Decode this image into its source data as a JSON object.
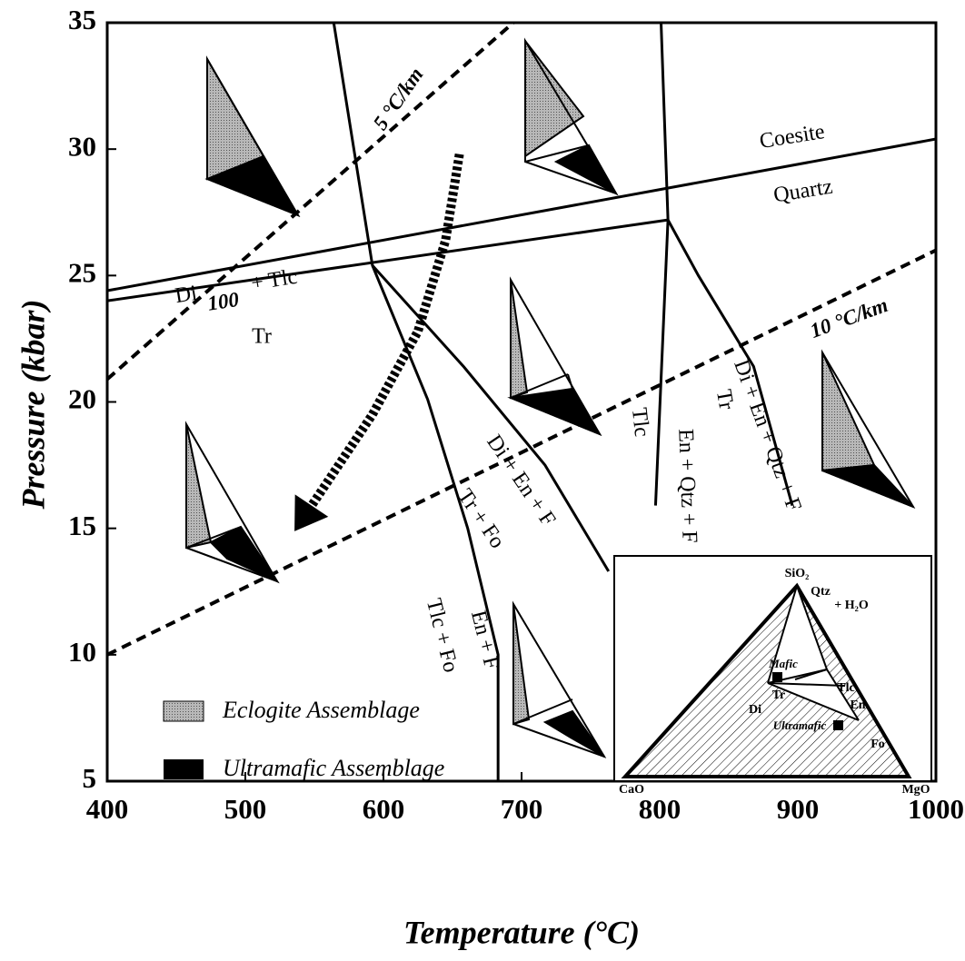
{
  "chart_data": {
    "type": "line",
    "x_label": "Temperature (°C)",
    "y_label": "Pressure (kbar)",
    "xlim": [
      400,
      1000
    ],
    "ylim": [
      5,
      35
    ],
    "xticks": [
      400,
      500,
      600,
      700,
      800,
      900,
      1000
    ],
    "yticks": [
      5,
      10,
      15,
      20,
      25,
      30,
      35
    ],
    "series": [
      {
        "style": "solid",
        "color": "#000000",
        "x": [
          400,
          1000
        ],
        "values": [
          24.4,
          30.4
        ]
      },
      {
        "style": "solid",
        "color": "#000000",
        "x": [
          400,
          806
        ],
        "values": [
          24.0,
          27.2
        ]
      },
      {
        "style": "solid",
        "color": "#000000",
        "x": [
          564,
          592,
          632,
          661,
          683,
          683
        ],
        "values": [
          35,
          25.4,
          20.1,
          15,
          10,
          5
        ]
      },
      {
        "style": "solid",
        "color": "#000000",
        "x": [
          592,
          658,
          717,
          763
        ],
        "values": [
          25.4,
          21.4,
          17.5,
          13.3
        ]
      },
      {
        "style": "solid",
        "color": "#000000",
        "x": [
          801,
          806,
          797
        ],
        "values": [
          35,
          27.2,
          15.9
        ]
      },
      {
        "style": "solid",
        "color": "#000000",
        "x": [
          806,
          828,
          868,
          896
        ],
        "values": [
          27.2,
          25.0,
          21.4,
          15.9
        ]
      },
      {
        "style": "dashed",
        "color": "#000000",
        "x": [
          400,
          694
        ],
        "values": [
          20.9,
          35
        ]
      },
      {
        "style": "dashed",
        "color": "#000000",
        "x": [
          400,
          1000
        ],
        "values": [
          10.0,
          26.0
        ]
      },
      {
        "style": "arrow",
        "color": "#000000",
        "x": [
          655,
          645,
          625,
          592,
          548
        ],
        "values": [
          29.8,
          26.4,
          22.8,
          19.5,
          15.9
        ]
      }
    ],
    "annotations": [
      "5 °C/km",
      "10 °C/km",
      "Coesite",
      "Quartz",
      "Di",
      "100",
      "+ Tlc",
      "Tr",
      "Di + En + F",
      "Tr + Fo",
      "En + F",
      "Tlc + Fo",
      "Tlc",
      "En + Qtz + F",
      "Tr",
      "Di + En + Qtz + F"
    ],
    "legend": [
      "Eclogite Assemblage",
      "Ultramafic Assemblage"
    ],
    "inset_labels": [
      "SiO₂",
      "Qtz",
      "+ H₂O",
      "Mafic",
      "Tr",
      "Tlc",
      "Di",
      "En",
      "Ultramafic",
      "Fo",
      "CaO",
      "MgO"
    ]
  }
}
